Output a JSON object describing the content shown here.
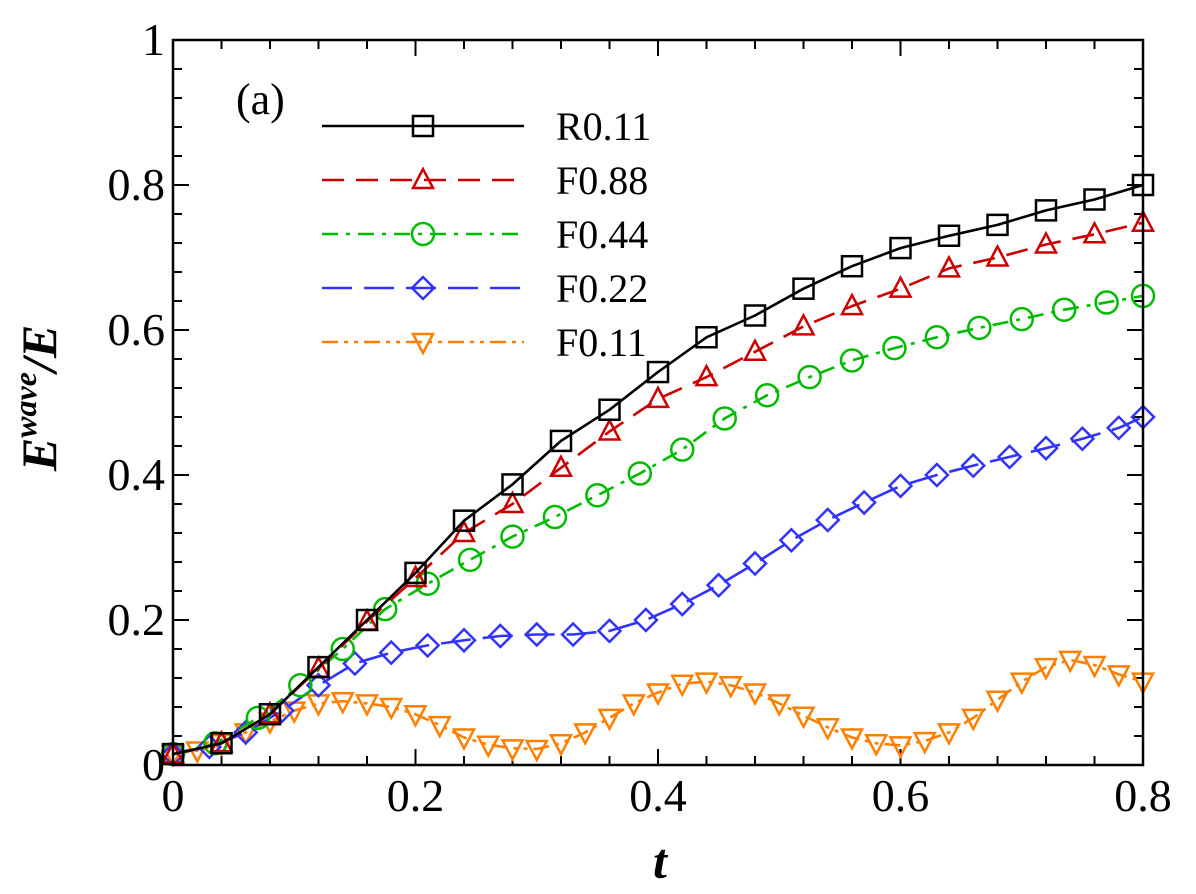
{
  "chart_data": {
    "type": "line",
    "panel_label": "(a)",
    "xlabel": "t",
    "ylabel_base": "E",
    "ylabel_sup": "wave",
    "ylabel_tail": "/E",
    "xlim": [
      0,
      0.8
    ],
    "ylim": [
      0,
      1
    ],
    "x_ticks": [
      0,
      0.2,
      0.4,
      0.6,
      0.8
    ],
    "x_tick_labels": [
      "0",
      "0.2",
      "0.4",
      "0.6",
      "0.8"
    ],
    "y_ticks": [
      0,
      0.2,
      0.4,
      0.6,
      0.8,
      1
    ],
    "y_tick_labels": [
      "0",
      "0.2",
      "0.4",
      "0.6",
      "0.8",
      "1"
    ],
    "legend_position": "top-left",
    "series": [
      {
        "name": "R0.11",
        "color": "#000000",
        "dash": "solid",
        "marker": "square",
        "x": [
          0,
          0.04,
          0.08,
          0.12,
          0.16,
          0.2,
          0.24,
          0.28,
          0.32,
          0.36,
          0.4,
          0.44,
          0.48,
          0.52,
          0.56,
          0.6,
          0.64,
          0.68,
          0.72,
          0.76,
          0.8
        ],
        "y": [
          0.015,
          0.03,
          0.07,
          0.135,
          0.2,
          0.265,
          0.337,
          0.387,
          0.447,
          0.49,
          0.542,
          0.59,
          0.62,
          0.657,
          0.688,
          0.713,
          0.73,
          0.745,
          0.765,
          0.78,
          0.8
        ]
      },
      {
        "name": "F0.88",
        "color": "#cc0000",
        "dash": "dash",
        "marker": "triangle-up",
        "x": [
          0,
          0.04,
          0.08,
          0.12,
          0.16,
          0.2,
          0.24,
          0.28,
          0.32,
          0.36,
          0.4,
          0.44,
          0.48,
          0.52,
          0.56,
          0.6,
          0.64,
          0.68,
          0.72,
          0.76,
          0.8
        ],
        "y": [
          0.015,
          0.03,
          0.07,
          0.133,
          0.198,
          0.258,
          0.32,
          0.36,
          0.41,
          0.46,
          0.505,
          0.535,
          0.57,
          0.605,
          0.633,
          0.657,
          0.685,
          0.7,
          0.718,
          0.732,
          0.748
        ]
      },
      {
        "name": "F0.44",
        "color": "#00bb00",
        "dash": "dashdot",
        "marker": "circle",
        "x": [
          0,
          0.035,
          0.07,
          0.105,
          0.14,
          0.175,
          0.21,
          0.245,
          0.28,
          0.315,
          0.35,
          0.385,
          0.42,
          0.455,
          0.49,
          0.525,
          0.56,
          0.595,
          0.63,
          0.665,
          0.7,
          0.735,
          0.77,
          0.8
        ],
        "y": [
          0.015,
          0.03,
          0.065,
          0.11,
          0.16,
          0.215,
          0.25,
          0.283,
          0.315,
          0.342,
          0.372,
          0.402,
          0.435,
          0.478,
          0.51,
          0.535,
          0.558,
          0.575,
          0.59,
          0.603,
          0.615,
          0.628,
          0.638,
          0.647
        ]
      },
      {
        "name": "F0.22",
        "color": "#3333ff",
        "dash": "longdash",
        "marker": "diamond",
        "x": [
          0,
          0.03,
          0.06,
          0.09,
          0.12,
          0.15,
          0.18,
          0.21,
          0.24,
          0.27,
          0.3,
          0.33,
          0.36,
          0.39,
          0.42,
          0.45,
          0.48,
          0.51,
          0.54,
          0.57,
          0.6,
          0.63,
          0.66,
          0.69,
          0.72,
          0.75,
          0.78,
          0.8
        ],
        "y": [
          0.015,
          0.025,
          0.045,
          0.075,
          0.11,
          0.14,
          0.155,
          0.165,
          0.172,
          0.178,
          0.18,
          0.18,
          0.185,
          0.2,
          0.222,
          0.248,
          0.278,
          0.31,
          0.338,
          0.362,
          0.385,
          0.4,
          0.413,
          0.425,
          0.437,
          0.45,
          0.465,
          0.48
        ]
      },
      {
        "name": "F0.11",
        "color": "#ff8000",
        "dash": "dashdotdot",
        "marker": "triangle-down",
        "x": [
          0,
          0.02,
          0.04,
          0.06,
          0.08,
          0.1,
          0.12,
          0.14,
          0.16,
          0.18,
          0.2,
          0.22,
          0.24,
          0.26,
          0.28,
          0.3,
          0.32,
          0.34,
          0.36,
          0.38,
          0.4,
          0.42,
          0.44,
          0.46,
          0.48,
          0.5,
          0.52,
          0.54,
          0.56,
          0.58,
          0.6,
          0.62,
          0.64,
          0.66,
          0.68,
          0.7,
          0.72,
          0.74,
          0.76,
          0.78,
          0.8
        ],
        "y": [
          0.015,
          0.02,
          0.03,
          0.045,
          0.06,
          0.075,
          0.085,
          0.088,
          0.085,
          0.08,
          0.07,
          0.055,
          0.038,
          0.028,
          0.023,
          0.022,
          0.03,
          0.045,
          0.065,
          0.085,
          0.1,
          0.112,
          0.115,
          0.11,
          0.1,
          0.085,
          0.068,
          0.052,
          0.038,
          0.03,
          0.027,
          0.033,
          0.045,
          0.065,
          0.09,
          0.115,
          0.135,
          0.145,
          0.138,
          0.125,
          0.115
        ]
      }
    ]
  }
}
